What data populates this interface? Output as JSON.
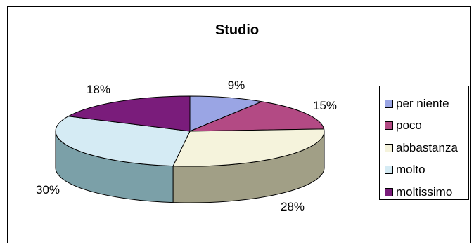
{
  "chart_data": {
    "type": "pie",
    "title": "Studio",
    "categories": [
      "per niente",
      "poco",
      "abbastanza",
      "molto",
      "moltissimo"
    ],
    "values": [
      9,
      15,
      28,
      30,
      18
    ],
    "labels": [
      "9%",
      "15%",
      "28%",
      "30%",
      "18%"
    ],
    "colors": [
      "#9aa5e4",
      "#b34a84",
      "#f5f3dc",
      "#d5ebf4",
      "#7a1c7b"
    ],
    "side_colors": [
      "#6d79b0",
      "#813461",
      "#a19f86",
      "#7ba0a8",
      "#561258"
    ],
    "legend_placement": "right",
    "three_d": true
  }
}
